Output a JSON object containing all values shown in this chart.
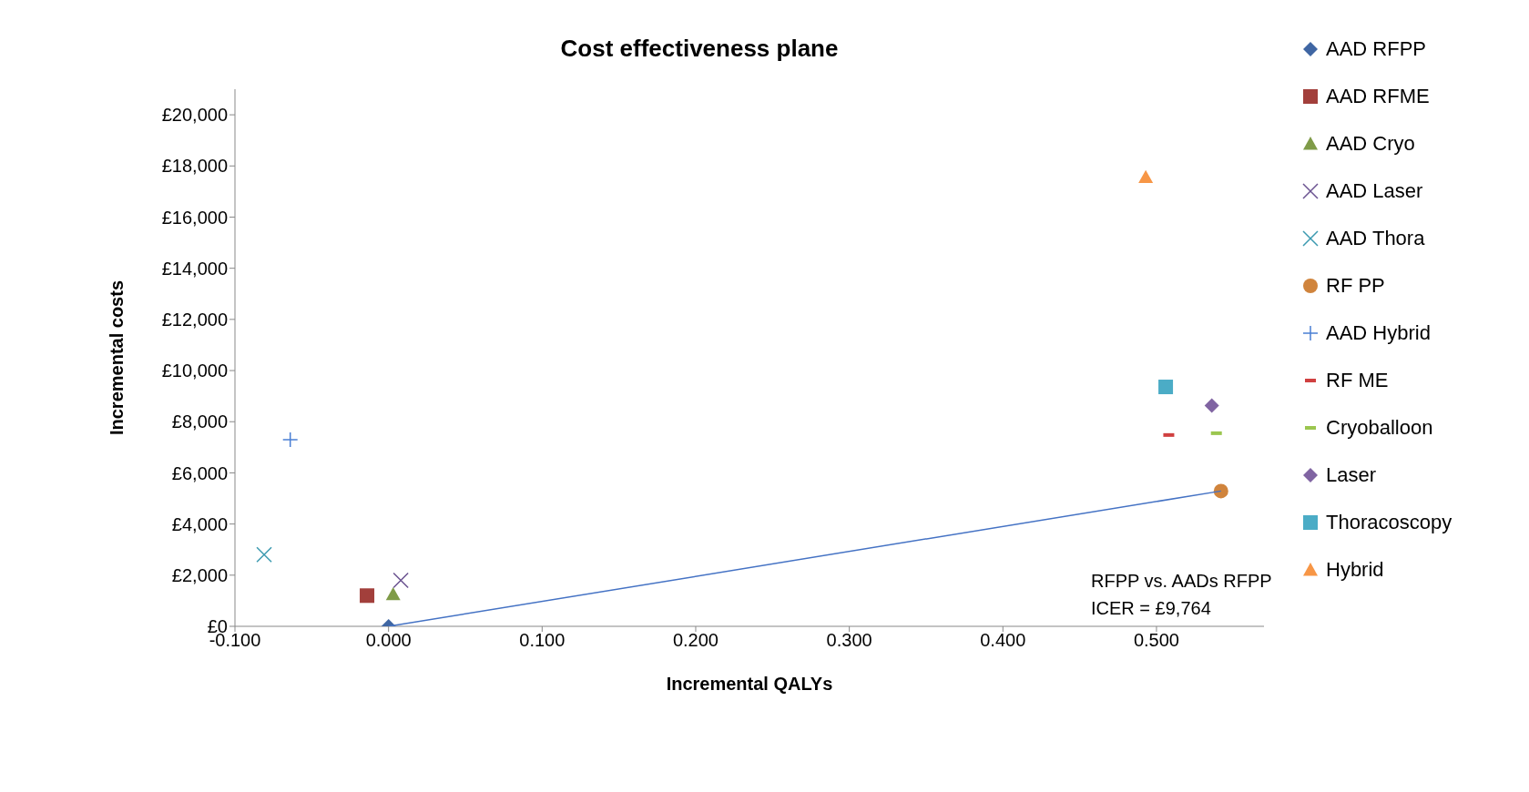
{
  "chart_data": {
    "type": "scatter",
    "title": "Cost effectiveness plane",
    "xlabel": "Incremental QALYs",
    "ylabel": "Incremental costs",
    "xlim": [
      -0.1,
      0.57
    ],
    "ylim": [
      0,
      21000
    ],
    "xticks": [
      {
        "value": -0.1,
        "label": "-0.100"
      },
      {
        "value": 0,
        "label": "0.000"
      },
      {
        "value": 0.1,
        "label": "0.100"
      },
      {
        "value": 0.2,
        "label": "0.200"
      },
      {
        "value": 0.3,
        "label": "0.300"
      },
      {
        "value": 0.4,
        "label": "0.400"
      },
      {
        "value": 0.5,
        "label": "0.500"
      }
    ],
    "yticks": [
      {
        "value": 0,
        "label": "£0"
      },
      {
        "value": 2000,
        "label": "£2,000"
      },
      {
        "value": 4000,
        "label": "£4,000"
      },
      {
        "value": 6000,
        "label": "£6,000"
      },
      {
        "value": 8000,
        "label": "£8,000"
      },
      {
        "value": 10000,
        "label": "£10,000"
      },
      {
        "value": 12000,
        "label": "£12,000"
      },
      {
        "value": 14000,
        "label": "£14,000"
      },
      {
        "value": 16000,
        "label": "£16,000"
      },
      {
        "value": 18000,
        "label": "£18,000"
      },
      {
        "value": 20000,
        "label": "£20,000"
      }
    ],
    "grid": false,
    "legend": "top right",
    "series": [
      {
        "name": "AAD RFPP",
        "color": "#3f66a3",
        "marker": "diamond",
        "x": [
          0
        ],
        "values": [
          0
        ]
      },
      {
        "name": "AAD RFME",
        "color": "#a23f3b",
        "marker": "square",
        "x": [
          -0.014
        ],
        "values": [
          1200
        ]
      },
      {
        "name": "AAD Cryo",
        "color": "#7f9b48",
        "marker": "triangle",
        "x": [
          0.003
        ],
        "values": [
          1250
        ]
      },
      {
        "name": "AAD Laser",
        "color": "#6a5290",
        "marker": "cross",
        "x": [
          0.008
        ],
        "values": [
          1800
        ]
      },
      {
        "name": "AAD Thora",
        "color": "#3c9ab0",
        "marker": "cross",
        "x": [
          -0.081
        ],
        "values": [
          2800
        ]
      },
      {
        "name": "RF PP",
        "color": "#d0843c",
        "marker": "circle",
        "x": [
          0.542
        ],
        "values": [
          5290
        ]
      },
      {
        "name": "AAD Hybrid",
        "color": "#4a7fd4",
        "marker": "plus",
        "x": [
          -0.064
        ],
        "values": [
          7300
        ]
      },
      {
        "name": "RF ME",
        "color": "#d04040",
        "x": [
          0.508
        ],
        "values": [
          7480
        ]
      },
      {
        "name": "Cryoballoon",
        "color": "#9bc64f",
        "x": [
          0.539
        ],
        "values": [
          7550
        ]
      },
      {
        "name": "Laser",
        "color": "#8064a2",
        "marker": "diamond",
        "x": [
          0.536
        ],
        "values": [
          8630
        ]
      },
      {
        "name": "Thoracoscopy",
        "color": "#4bacc6",
        "marker": "square",
        "x": [
          0.506
        ],
        "values": [
          9360
        ]
      },
      {
        "name": "Hybrid",
        "color": "#f79646",
        "marker": "triangle",
        "x": [
          0.493
        ],
        "values": [
          17560
        ]
      },
      {
        "type": "line",
        "color": "#4472c4",
        "marker": "none",
        "x": [
          0,
          0.542
        ],
        "values": [
          0,
          5290
        ]
      }
    ],
    "annotations": [
      "RFPP vs. AADs RFPP",
      "ICER = £9,764"
    ]
  }
}
